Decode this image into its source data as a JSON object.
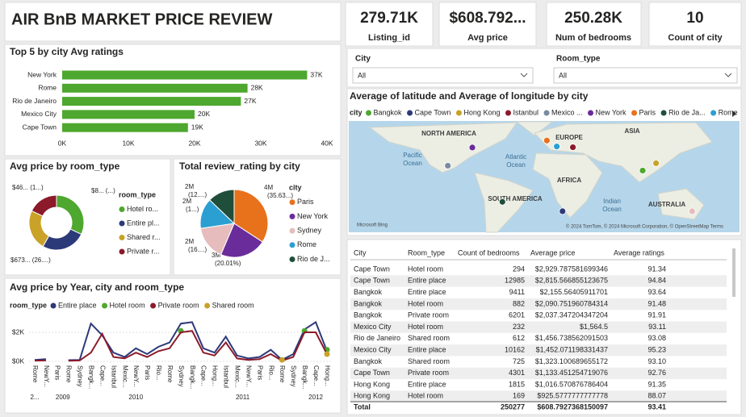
{
  "title": "AIR BnB MARKET PRICE REVIEW",
  "kpis": [
    {
      "value": "279.71K",
      "label": "Listing_id"
    },
    {
      "value": "$608.792...",
      "label": "Avg price"
    },
    {
      "value": "250.28K",
      "label": "Num of bedrooms"
    },
    {
      "value": "10",
      "label": "Count of city"
    }
  ],
  "slicers": [
    {
      "label": "City",
      "value": "All"
    },
    {
      "label": "Room_type",
      "value": "All"
    }
  ],
  "chart_data": [
    {
      "type": "bar",
      "title": "Top 5 by city Avg ratings",
      "categories": [
        "New York",
        "Rome",
        "Rio de Janeiro",
        "Mexico City",
        "Cape Town"
      ],
      "values": [
        37000,
        28000,
        27000,
        20000,
        19000
      ],
      "value_labels": [
        "37K",
        "28K",
        "27K",
        "20K",
        "19K"
      ],
      "color": "#4ea72e",
      "xlim": [
        0,
        40000
      ],
      "xticks": [
        {
          "value": 0,
          "label": "0K"
        },
        {
          "value": 10000,
          "label": "10K"
        },
        {
          "value": 20000,
          "label": "20K"
        },
        {
          "value": 30000,
          "label": "30K"
        },
        {
          "value": 40000,
          "label": "40K"
        }
      ]
    },
    {
      "type": "donut",
      "title": "Avg price by room_type",
      "legend_title": "room_type",
      "categories": [
        "Hotel ro...",
        "Entire pl...",
        "Shared r...",
        "Private r..."
      ],
      "values": [
        820,
        673,
        610,
        460
      ],
      "value_labels": [
        "$8... (...)",
        "$673... (26....)",
        null,
        "$46... (1...)"
      ],
      "colors": [
        "#4ea72e",
        "#2d3a7a",
        "#c9a227",
        "#8b1a2a"
      ]
    },
    {
      "type": "pie",
      "title": "Total review_rating by city",
      "legend_title": "city",
      "categories": [
        "Paris",
        "New York",
        "Sydney",
        "Rome",
        "Rio de J..."
      ],
      "values": [
        4000000,
        2600000,
        1900000,
        1700000,
        1500000
      ],
      "value_labels": [
        "4M (35.63...)",
        "3M (20.01%)",
        "2M (16....)",
        "2M (1...)",
        "2M (12....)"
      ],
      "colors": [
        "#e8711c",
        "#6a2c9a",
        "#e6bcbc",
        "#2b9fd1",
        "#1f4e3a"
      ]
    },
    {
      "type": "line",
      "title": "Avg price by Year, city and room_type",
      "legend_title": "room_type",
      "groups": [
        {
          "label": "2...",
          "categories": [
            "Rome"
          ]
        },
        {
          "label": "2009",
          "categories": [
            "NewY...",
            "Paris",
            "Rome",
            "Sydney"
          ]
        },
        {
          "label": "2010",
          "categories": [
            "Bangk...",
            "Cape...",
            "Istanbul",
            "Mexic...",
            "NewY...",
            "Paris",
            "Rio...",
            "Rome",
            "Sydney"
          ]
        },
        {
          "label": "2011",
          "categories": [
            "Bangk...",
            "Cape...",
            "Hong...",
            "Istanbul",
            "Mexic...",
            "NewY...",
            "Paris",
            "Rio...",
            "Rome",
            "Sydney"
          ]
        },
        {
          "label": "2012",
          "categories": [
            "Bangk...",
            "Cape...",
            "Hong..."
          ]
        }
      ],
      "series": [
        {
          "name": "Entire place",
          "color": "#2d3a7a",
          "values": [
            100,
            150,
            null,
            80,
            100,
            2600,
            1800,
            600,
            300,
            900,
            500,
            1000,
            1300,
            2600,
            2700,
            900,
            600,
            1700,
            400,
            200,
            300,
            800,
            100,
            500,
            2200,
            2700,
            700
          ]
        },
        {
          "name": "Hotel room",
          "color": "#4ea72e",
          "values": [
            null,
            null,
            null,
            null,
            null,
            null,
            null,
            null,
            null,
            null,
            null,
            null,
            null,
            2100,
            null,
            null,
            null,
            null,
            null,
            null,
            null,
            null,
            null,
            null,
            2100,
            null,
            800
          ]
        },
        {
          "name": "Private room",
          "color": "#8b1a2a",
          "values": [
            50,
            60,
            null,
            40,
            60,
            600,
            1900,
            300,
            200,
            600,
            300,
            700,
            900,
            2000,
            2100,
            600,
            400,
            1300,
            200,
            100,
            150,
            500,
            50,
            300,
            2000,
            2000,
            500
          ]
        },
        {
          "name": "Shared room",
          "color": "#c9a227",
          "values": [
            null,
            null,
            null,
            null,
            null,
            null,
            null,
            null,
            null,
            null,
            null,
            null,
            null,
            null,
            null,
            null,
            null,
            null,
            null,
            null,
            null,
            null,
            100,
            null,
            null,
            null,
            500
          ]
        }
      ],
      "ylim": [
        0,
        3000
      ],
      "yticks": [
        {
          "value": 0,
          "label": "$0K"
        },
        {
          "value": 2000,
          "label": "$2K"
        }
      ],
      "grid": true
    },
    {
      "type": "map",
      "title": "Average of latitude and Average of longitude by city",
      "legend_title": "city",
      "categories": [
        "Bangkok",
        "Cape Town",
        "Hong Kong",
        "Istanbul",
        "Mexico ...",
        "New York",
        "Paris",
        "Rio de Ja...",
        "Rome",
        null
      ],
      "colors": [
        "#4ea72e",
        "#2d3a7a",
        "#c9a227",
        "#8b1a2a",
        "#7a8aa0",
        "#6a2c9a",
        "#e8711c",
        "#1f4e3a",
        "#2b9fd1",
        "#e6bcbc"
      ],
      "lat": [
        13.75,
        -33.9,
        22.3,
        41.0,
        19.4,
        40.7,
        48.9,
        -22.9,
        41.9,
        -33.9
      ],
      "lon": [
        100.5,
        18.4,
        114.2,
        29.0,
        -99.1,
        -74.0,
        2.35,
        -43.2,
        12.5,
        151.2
      ],
      "labels": [
        "NORTH AMERICA",
        "EUROPE",
        "ASIA",
        "Pacific Ocean",
        "Atlantic Ocean",
        "AFRICA",
        "SOUTH AMERICA",
        "Indian Ocean",
        "AUSTRALIA"
      ],
      "attribution": "© 2024 TomTom, © 2024 Microsoft Corporation, © OpenStreetMap Terms",
      "provider": "Microsoft Bing"
    }
  ],
  "table": {
    "columns": [
      "City",
      "Room_type",
      "Count of bedrooms",
      "Average price",
      "Average ratings"
    ],
    "rows": [
      [
        "Cape Town",
        "Hotel room",
        "294",
        "$2,929.787581699346",
        "91.34"
      ],
      [
        "Cape Town",
        "Entire place",
        "12985",
        "$2,815.566855123675",
        "94.84"
      ],
      [
        "Bangkok",
        "Entire place",
        "9411",
        "$2,155.56405911701",
        "93.64"
      ],
      [
        "Bangkok",
        "Hotel room",
        "882",
        "$2,090.751960784314",
        "91.48"
      ],
      [
        "Bangkok",
        "Private room",
        "6201",
        "$2,037.347204347204",
        "91.91"
      ],
      [
        "Mexico City",
        "Hotel room",
        "232",
        "$1,564.5",
        "93.11"
      ],
      [
        "Rio de Janeiro",
        "Shared room",
        "612",
        "$1,456.738562091503",
        "93.08"
      ],
      [
        "Mexico City",
        "Entire place",
        "10162",
        "$1,452.071198331437",
        "95.23"
      ],
      [
        "Bangkok",
        "Shared room",
        "725",
        "$1,323.100689655172",
        "93.10"
      ],
      [
        "Cape Town",
        "Private room",
        "4301",
        "$1,133.451254719076",
        "92.76"
      ],
      [
        "Hong Kong",
        "Entire place",
        "1815",
        "$1,016.570876786404",
        "91.35"
      ],
      [
        "Hong Kong",
        "Hotel room",
        "169",
        "$925.5777777777778",
        "88.07"
      ]
    ],
    "total": {
      "label": "Total",
      "bedrooms": "250277",
      "price": "$608.7927368150097",
      "ratings": "93.41"
    }
  }
}
